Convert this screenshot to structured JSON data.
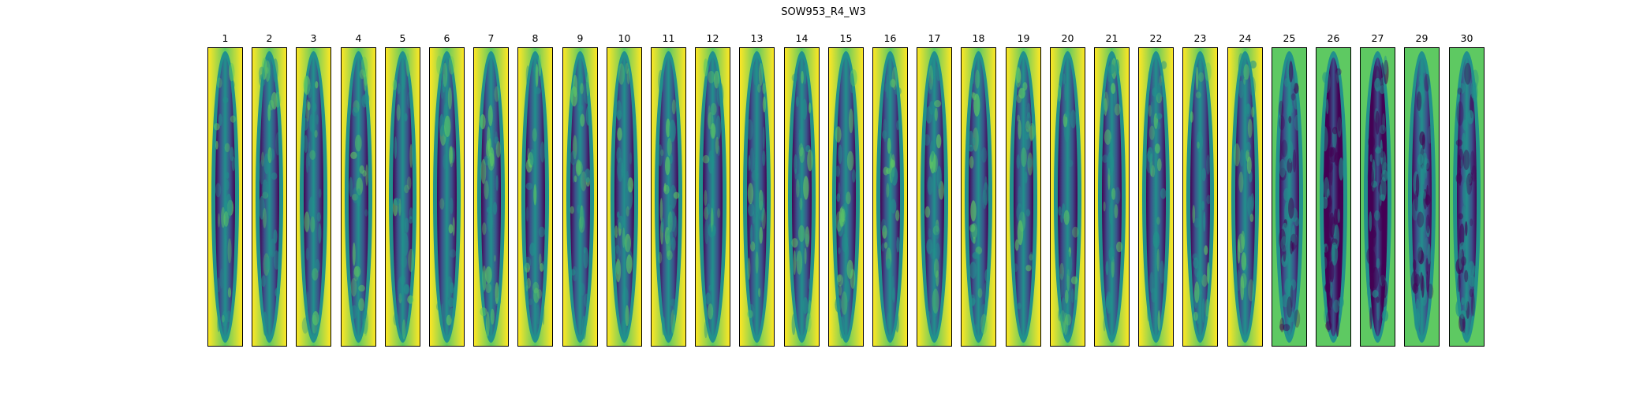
{
  "figure": {
    "title": "SOW953_R4_W3",
    "colormap": "viridis",
    "colors": {
      "high": "#fde725",
      "mid_high": "#5ec962",
      "mid": "#21918c",
      "mid_low": "#3b528b",
      "low": "#440154"
    },
    "panels": [
      {
        "label": "1",
        "variant": 0
      },
      {
        "label": "2",
        "variant": 0
      },
      {
        "label": "3",
        "variant": 0
      },
      {
        "label": "4",
        "variant": 0
      },
      {
        "label": "5",
        "variant": 0
      },
      {
        "label": "6",
        "variant": 0
      },
      {
        "label": "7",
        "variant": 0
      },
      {
        "label": "8",
        "variant": 0
      },
      {
        "label": "9",
        "variant": 0
      },
      {
        "label": "10",
        "variant": 0
      },
      {
        "label": "11",
        "variant": 1
      },
      {
        "label": "12",
        "variant": 0
      },
      {
        "label": "13",
        "variant": 0
      },
      {
        "label": "14",
        "variant": 1
      },
      {
        "label": "15",
        "variant": 1
      },
      {
        "label": "16",
        "variant": 1
      },
      {
        "label": "17",
        "variant": 1
      },
      {
        "label": "18",
        "variant": 1
      },
      {
        "label": "19",
        "variant": 1
      },
      {
        "label": "20",
        "variant": 1
      },
      {
        "label": "21",
        "variant": 1
      },
      {
        "label": "22",
        "variant": 1
      },
      {
        "label": "23",
        "variant": 1
      },
      {
        "label": "24",
        "variant": 1
      },
      {
        "label": "25",
        "variant": 2
      },
      {
        "label": "26",
        "variant": 3
      },
      {
        "label": "27",
        "variant": 3
      },
      {
        "label": "29",
        "variant": 2
      },
      {
        "label": "30",
        "variant": 2
      }
    ]
  }
}
